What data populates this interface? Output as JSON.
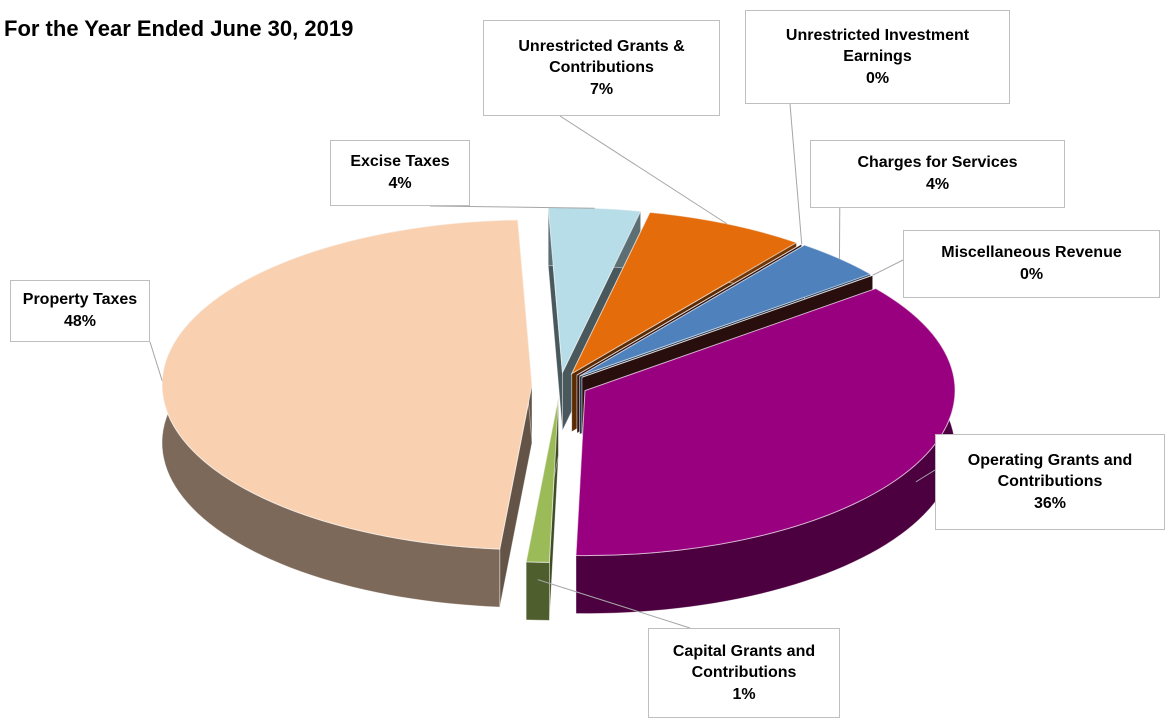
{
  "chart_data": {
    "type": "pie3d",
    "title": "For the Year Ended June 30, 2019",
    "categories": [
      "Property Taxes",
      "Excise Taxes",
      "Unrestricted Grants & Contributions",
      "Unrestricted Investment Earnings",
      "Charges for Services",
      "Miscellaneous Revenue",
      "Operating Grants and Contributions",
      "Capital Grants and Contributions"
    ],
    "values": [
      48,
      4,
      7,
      0,
      4,
      0,
      36,
      1
    ],
    "value_labels": [
      "48%",
      "4%",
      "7%",
      "0%",
      "4%",
      "0%",
      "36%",
      "1%"
    ],
    "colors": [
      "#f9d1b1",
      "#b7dde8",
      "#e46c0a",
      "#7b2c2a",
      "#4f81bd",
      "#632523",
      "#990080",
      "#9bbb59"
    ]
  }
}
